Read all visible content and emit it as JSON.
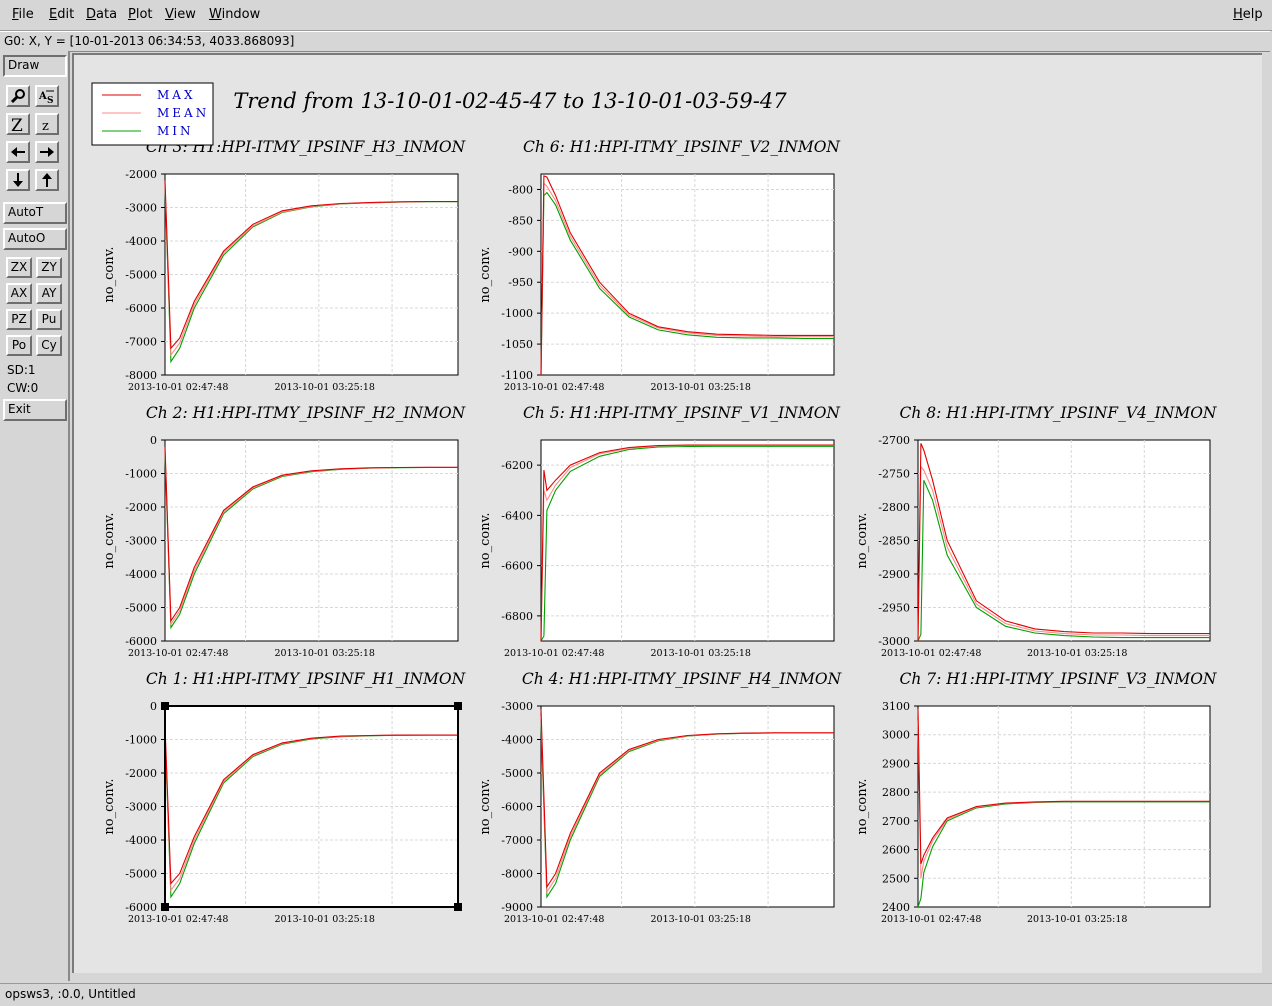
{
  "menubar": {
    "items": [
      "File",
      "Edit",
      "Data",
      "Plot",
      "View",
      "Window"
    ],
    "help": "Help"
  },
  "coord_readout": "G0: X, Y = [10-01-2013 06:34:53, 4033.868093]",
  "toolbar": {
    "draw": "Draw",
    "icons": [
      "zoom-icon",
      "auto-scale-icon",
      "zoom-in-z-icon",
      "zoom-out-z-icon",
      "arrow-left-icon",
      "arrow-right-icon",
      "arrow-down-icon",
      "arrow-up-icon"
    ],
    "auto_t": "AutoT",
    "auto_o": "AutoO",
    "small_buttons": [
      "ZX",
      "ZY",
      "AX",
      "AY",
      "PZ",
      "Pu",
      "Po",
      "Cy"
    ],
    "sd": "SD:1",
    "cw": "CW:0",
    "exit": "Exit"
  },
  "statusbar": "opsws3, :0.0, Untitled",
  "plot": {
    "title": "Trend from 13-10-01-02-45-47 to 13-10-01-03-59-47",
    "ylabel": "no_conv.",
    "x_ticks": [
      "2013-10-01 02:47:48",
      "2013-10-01 03:25:18"
    ],
    "colors": {
      "max": "#e00000",
      "mean": "#ff8a8a",
      "min": "#00a000"
    }
  },
  "chart_data": [
    {
      "type": "line",
      "title": "Ch 3: H1:HPI-ITMY_IPSINF_H3_INMON",
      "ylabel": "no_conv.",
      "ylim": [
        -8000,
        -2000
      ],
      "yticks": [
        -2000,
        -3000,
        -4000,
        -5000,
        -6000,
        -7000,
        -8000
      ],
      "x": [
        0,
        0.02,
        0.05,
        0.1,
        0.2,
        0.3,
        0.4,
        0.5,
        0.6,
        0.7,
        0.8,
        0.9,
        1.0
      ],
      "series": [
        {
          "name": "MAX",
          "values": [
            -2200,
            -7200,
            -6900,
            -5800,
            -4300,
            -3500,
            -3100,
            -2950,
            -2880,
            -2850,
            -2830,
            -2820,
            -2820
          ]
        },
        {
          "name": "MEAN",
          "values": [
            -2300,
            -7400,
            -7050,
            -5900,
            -4350,
            -3550,
            -3130,
            -2970,
            -2890,
            -2855,
            -2835,
            -2825,
            -2825
          ]
        },
        {
          "name": "MIN",
          "values": [
            -2400,
            -7600,
            -7200,
            -6000,
            -4420,
            -3580,
            -3150,
            -2980,
            -2895,
            -2860,
            -2840,
            -2828,
            -2828
          ]
        }
      ]
    },
    {
      "type": "line",
      "title": "Ch 6: H1:HPI-ITMY_IPSINF_V2_INMON",
      "ylabel": "no_conv.",
      "ylim": [
        -1100,
        -775
      ],
      "yticks": [
        -800,
        -850,
        -900,
        -950,
        -1000,
        -1050,
        -1100
      ],
      "x": [
        0,
        0.01,
        0.02,
        0.05,
        0.1,
        0.2,
        0.3,
        0.4,
        0.5,
        0.6,
        0.7,
        0.8,
        0.9,
        1.0
      ],
      "series": [
        {
          "name": "MAX",
          "values": [
            -1100,
            -778,
            -780,
            -810,
            -870,
            -950,
            -1000,
            -1022,
            -1030,
            -1034,
            -1035,
            -1036,
            -1036,
            -1036
          ]
        },
        {
          "name": "MEAN",
          "values": [
            -1100,
            -790,
            -795,
            -818,
            -876,
            -955,
            -1003,
            -1024,
            -1032,
            -1036,
            -1037,
            -1038,
            -1038,
            -1038
          ]
        },
        {
          "name": "MIN",
          "values": [
            -1100,
            -810,
            -805,
            -825,
            -882,
            -960,
            -1006,
            -1027,
            -1035,
            -1039,
            -1040,
            -1040,
            -1041,
            -1041
          ]
        }
      ]
    },
    {
      "type": "line",
      "title": "Ch 2: H1:HPI-ITMY_IPSINF_H2_INMON",
      "ylabel": "no_conv.",
      "ylim": [
        -6000,
        0
      ],
      "yticks": [
        0,
        -1000,
        -2000,
        -3000,
        -4000,
        -5000,
        -6000
      ],
      "x": [
        0,
        0.02,
        0.05,
        0.1,
        0.2,
        0.3,
        0.4,
        0.5,
        0.6,
        0.7,
        0.8,
        0.9,
        1.0
      ],
      "series": [
        {
          "name": "MAX",
          "values": [
            -200,
            -5400,
            -5000,
            -3800,
            -2100,
            -1400,
            -1050,
            -920,
            -860,
            -830,
            -820,
            -815,
            -815
          ]
        },
        {
          "name": "MEAN",
          "values": [
            -300,
            -5500,
            -5100,
            -3900,
            -2150,
            -1430,
            -1070,
            -930,
            -868,
            -835,
            -822,
            -818,
            -818
          ]
        },
        {
          "name": "MIN",
          "values": [
            -400,
            -5600,
            -5200,
            -4000,
            -2200,
            -1460,
            -1090,
            -945,
            -875,
            -840,
            -828,
            -822,
            -822
          ]
        }
      ]
    },
    {
      "type": "line",
      "title": "Ch 5: H1:HPI-ITMY_IPSINF_V1_INMON",
      "ylabel": "no_conv.",
      "ylim": [
        -6900,
        -6100
      ],
      "yticks": [
        -6200,
        -6400,
        -6600,
        -6800
      ],
      "x": [
        0,
        0.01,
        0.02,
        0.05,
        0.1,
        0.2,
        0.3,
        0.4,
        0.5,
        0.6,
        0.7,
        0.8,
        0.9,
        1.0
      ],
      "series": [
        {
          "name": "MAX",
          "values": [
            -6900,
            -6220,
            -6300,
            -6260,
            -6200,
            -6150,
            -6130,
            -6122,
            -6120,
            -6120,
            -6120,
            -6120,
            -6120,
            -6120
          ]
        },
        {
          "name": "MEAN",
          "values": [
            -6900,
            -6300,
            -6340,
            -6280,
            -6210,
            -6155,
            -6133,
            -6124,
            -6122,
            -6122,
            -6122,
            -6122,
            -6122,
            -6122
          ]
        },
        {
          "name": "MIN",
          "values": [
            -6900,
            -6880,
            -6380,
            -6300,
            -6225,
            -6165,
            -6138,
            -6128,
            -6126,
            -6125,
            -6125,
            -6125,
            -6125,
            -6125
          ]
        }
      ]
    },
    {
      "type": "line",
      "title": "Ch 8: H1:HPI-ITMY_IPSINF_V4_INMON",
      "ylabel": "no_conv.",
      "ylim": [
        -3000,
        -2700
      ],
      "yticks": [
        -2700,
        -2750,
        -2800,
        -2850,
        -2900,
        -2950,
        -3000
      ],
      "x": [
        0,
        0.01,
        0.02,
        0.05,
        0.1,
        0.2,
        0.3,
        0.4,
        0.5,
        0.6,
        0.7,
        0.8,
        0.9,
        1.0
      ],
      "series": [
        {
          "name": "MAX",
          "values": [
            -3000,
            -2705,
            -2715,
            -2760,
            -2850,
            -2940,
            -2970,
            -2982,
            -2986,
            -2988,
            -2988,
            -2989,
            -2989,
            -2989
          ]
        },
        {
          "name": "MEAN",
          "values": [
            -3000,
            -2740,
            -2745,
            -2775,
            -2860,
            -2945,
            -2974,
            -2985,
            -2989,
            -2991,
            -2991,
            -2992,
            -2992,
            -2992
          ]
        },
        {
          "name": "MIN",
          "values": [
            -3000,
            -2990,
            -2760,
            -2790,
            -2872,
            -2950,
            -2978,
            -2988,
            -2992,
            -2994,
            -2995,
            -2995,
            -2995,
            -2995
          ]
        }
      ]
    },
    {
      "type": "line",
      "title": "Ch 1: H1:HPI-ITMY_IPSINF_H1_INMON",
      "ylabel": "no_conv.",
      "ylim": [
        -6000,
        0
      ],
      "yticks": [
        0,
        -1000,
        -2000,
        -3000,
        -4000,
        -5000,
        -6000
      ],
      "x": [
        0,
        0.02,
        0.05,
        0.1,
        0.2,
        0.3,
        0.4,
        0.5,
        0.6,
        0.7,
        0.8,
        0.9,
        1.0
      ],
      "series": [
        {
          "name": "MAX",
          "values": [
            -600,
            -5300,
            -5000,
            -3900,
            -2200,
            -1450,
            -1100,
            -960,
            -900,
            -880,
            -870,
            -865,
            -865
          ]
        },
        {
          "name": "MEAN",
          "values": [
            -700,
            -5500,
            -5150,
            -4000,
            -2250,
            -1480,
            -1120,
            -970,
            -908,
            -884,
            -872,
            -868,
            -868
          ]
        },
        {
          "name": "MIN",
          "values": [
            -800,
            -5700,
            -5300,
            -4100,
            -2300,
            -1510,
            -1140,
            -985,
            -915,
            -890,
            -876,
            -872,
            -872
          ]
        }
      ]
    },
    {
      "type": "line",
      "title": "Ch 4: H1:HPI-ITMY_IPSINF_H4_INMON",
      "ylabel": "no_conv.",
      "ylim": [
        -9000,
        -3000
      ],
      "yticks": [
        -3000,
        -4000,
        -5000,
        -6000,
        -7000,
        -8000,
        -9000
      ],
      "x": [
        0,
        0.02,
        0.05,
        0.1,
        0.2,
        0.3,
        0.4,
        0.5,
        0.6,
        0.7,
        0.8,
        0.9,
        1.0
      ],
      "series": [
        {
          "name": "MAX",
          "values": [
            -3100,
            -8400,
            -8000,
            -6800,
            -5000,
            -4300,
            -4000,
            -3880,
            -3830,
            -3810,
            -3800,
            -3800,
            -3800
          ]
        },
        {
          "name": "MEAN",
          "values": [
            -3300,
            -8550,
            -8150,
            -6900,
            -5050,
            -4330,
            -4020,
            -3890,
            -3835,
            -3812,
            -3802,
            -3802,
            -3802
          ]
        },
        {
          "name": "MIN",
          "values": [
            -3500,
            -8700,
            -8300,
            -7000,
            -5100,
            -4360,
            -4040,
            -3900,
            -3840,
            -3815,
            -3805,
            -3805,
            -3805
          ]
        }
      ]
    },
    {
      "type": "line",
      "title": "Ch 7: H1:HPI-ITMY_IPSINF_V3_INMON",
      "ylabel": "no_conv.",
      "ylim": [
        2400,
        3100
      ],
      "yticks": [
        3100,
        3000,
        2900,
        2800,
        2700,
        2600,
        2500,
        2400
      ],
      "x": [
        0,
        0.01,
        0.02,
        0.05,
        0.1,
        0.2,
        0.3,
        0.4,
        0.5,
        0.6,
        0.7,
        0.8,
        0.9,
        1.0
      ],
      "series": [
        {
          "name": "MAX",
          "values": [
            3090,
            2550,
            2580,
            2640,
            2710,
            2750,
            2762,
            2766,
            2768,
            2768,
            2768,
            2768,
            2768,
            2768
          ]
        },
        {
          "name": "MEAN",
          "values": [
            3050,
            2500,
            2560,
            2630,
            2705,
            2748,
            2761,
            2765,
            2767,
            2767,
            2767,
            2767,
            2767,
            2767
          ]
        },
        {
          "name": "MIN",
          "values": [
            2400,
            2430,
            2520,
            2610,
            2700,
            2745,
            2759,
            2764,
            2766,
            2766,
            2766,
            2766,
            2766,
            2766
          ]
        }
      ]
    }
  ],
  "legend": [
    {
      "label": "MAX",
      "color": "#e00000"
    },
    {
      "label": "MEAN",
      "color": "#ff8a8a"
    },
    {
      "label": "MIN",
      "color": "#00a000"
    }
  ]
}
